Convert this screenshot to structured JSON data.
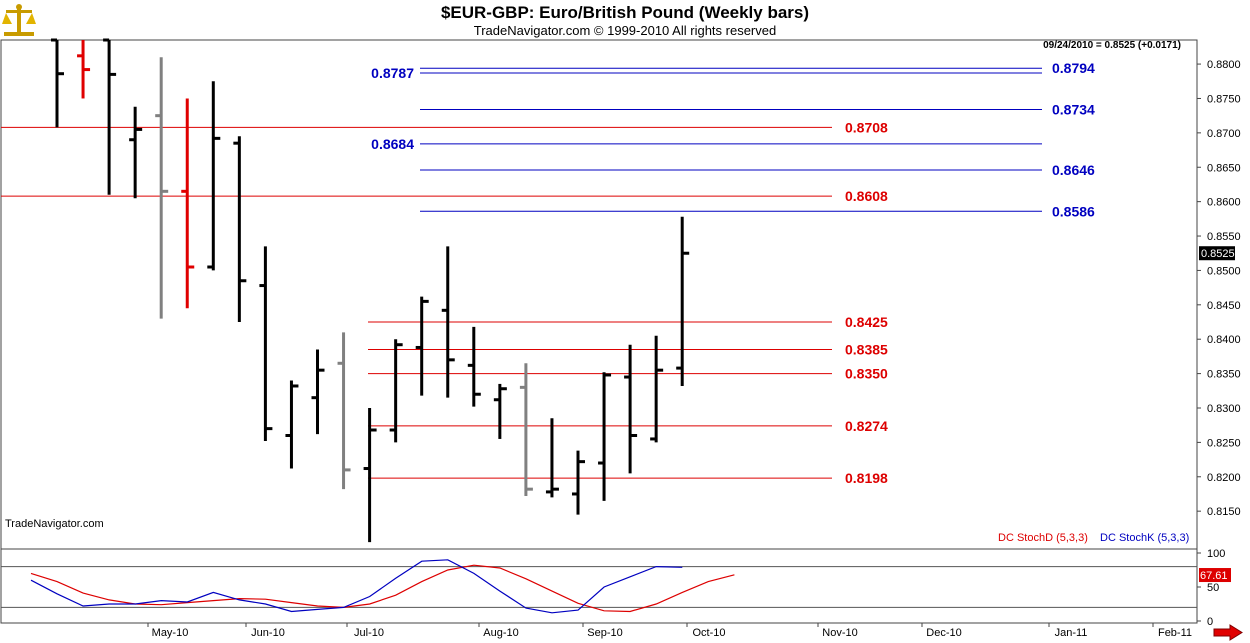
{
  "title": "$EUR-GBP:  Euro/British Pound  (Weekly bars)",
  "subtitle": "TradeNavigator.com © 1999-2010 All rights reserved",
  "watermark": "TradeNavigator.com",
  "last_quote": "09/24/2010 = 0.8525 (+0.0171)",
  "colors": {
    "up_bar": "#000000",
    "down_bar": "#e00000",
    "neutral_bar": "#808080",
    "blue_level": "#0000c0",
    "red_level": "#dd0000",
    "stochD": "#dd0000",
    "stochK": "#0000c0"
  },
  "chart_data": [
    {
      "type": "ohlc",
      "title": "$EUR-GBP:  Euro/British Pound  (Weekly bars)",
      "ylim": [
        0.8095,
        0.8835
      ],
      "y_ticks": [
        "0.8150",
        "0.8200",
        "0.8250",
        "0.8300",
        "0.8350",
        "0.8400",
        "0.8450",
        "0.8500",
        "0.8550",
        "0.8600",
        "0.8650",
        "0.8700",
        "0.8750",
        "0.8800"
      ],
      "x_ticks": [
        "May-10",
        "Jun-10",
        "Jul-10",
        "Aug-10",
        "Sep-10",
        "Oct-10",
        "Nov-10",
        "Dec-10",
        "Jan-11",
        "Feb-11"
      ],
      "last_value_label": "0.8525",
      "bars": [
        {
          "open": 0.8835,
          "high": 0.8835,
          "low": 0.8708,
          "close": 0.8786,
          "color": "black"
        },
        {
          "open": 0.8812,
          "high": 0.8835,
          "low": 0.875,
          "close": 0.8792,
          "color": "red"
        },
        {
          "open": 0.8835,
          "high": 0.8835,
          "low": 0.861,
          "close": 0.8785,
          "color": "black"
        },
        {
          "open": 0.869,
          "high": 0.8738,
          "low": 0.8605,
          "close": 0.8705,
          "color": "black"
        },
        {
          "open": 0.8725,
          "high": 0.881,
          "low": 0.843,
          "close": 0.8615,
          "color": "gray"
        },
        {
          "open": 0.8615,
          "high": 0.875,
          "low": 0.8445,
          "close": 0.8505,
          "color": "red"
        },
        {
          "open": 0.8505,
          "high": 0.8775,
          "low": 0.85,
          "close": 0.8692,
          "color": "black"
        },
        {
          "open": 0.8685,
          "high": 0.8695,
          "low": 0.8425,
          "close": 0.8485,
          "color": "black"
        },
        {
          "open": 0.8478,
          "high": 0.8535,
          "low": 0.8252,
          "close": 0.827,
          "color": "black"
        },
        {
          "open": 0.826,
          "high": 0.834,
          "low": 0.8212,
          "close": 0.8332,
          "color": "black"
        },
        {
          "open": 0.8315,
          "high": 0.8385,
          "low": 0.8262,
          "close": 0.8355,
          "color": "black"
        },
        {
          "open": 0.8365,
          "high": 0.841,
          "low": 0.8182,
          "close": 0.821,
          "color": "gray"
        },
        {
          "open": 0.8212,
          "high": 0.83,
          "low": 0.8105,
          "close": 0.8268,
          "color": "black"
        },
        {
          "open": 0.8268,
          "high": 0.84,
          "low": 0.825,
          "close": 0.8392,
          "color": "black"
        },
        {
          "open": 0.8388,
          "high": 0.8462,
          "low": 0.8318,
          "close": 0.8455,
          "color": "black"
        },
        {
          "open": 0.8442,
          "high": 0.8535,
          "low": 0.8315,
          "close": 0.837,
          "color": "black"
        },
        {
          "open": 0.8362,
          "high": 0.8418,
          "low": 0.8302,
          "close": 0.832,
          "color": "black"
        },
        {
          "open": 0.8312,
          "high": 0.8335,
          "low": 0.8255,
          "close": 0.8328,
          "color": "black"
        },
        {
          "open": 0.833,
          "high": 0.8365,
          "low": 0.8172,
          "close": 0.8182,
          "color": "gray"
        },
        {
          "open": 0.8178,
          "high": 0.8285,
          "low": 0.817,
          "close": 0.8182,
          "color": "black"
        },
        {
          "open": 0.8175,
          "high": 0.8238,
          "low": 0.8145,
          "close": 0.8222,
          "color": "black"
        },
        {
          "open": 0.822,
          "high": 0.8352,
          "low": 0.8165,
          "close": 0.8348,
          "color": "black"
        },
        {
          "open": 0.8345,
          "high": 0.8392,
          "low": 0.8205,
          "close": 0.826,
          "color": "black"
        },
        {
          "open": 0.8255,
          "high": 0.8405,
          "low": 0.825,
          "close": 0.8355,
          "color": "black"
        },
        {
          "open": 0.8358,
          "high": 0.8578,
          "low": 0.8332,
          "close": 0.8525,
          "color": "black"
        }
      ],
      "levels": [
        {
          "value": 0.8794,
          "label": "0.8794",
          "color": "blue"
        },
        {
          "value": 0.8787,
          "label": "0.8787",
          "color": "blue"
        },
        {
          "value": 0.8734,
          "label": "0.8734",
          "color": "blue"
        },
        {
          "value": 0.8708,
          "label": "0.8708",
          "color": "red"
        },
        {
          "value": 0.8684,
          "label": "0.8684",
          "color": "blue"
        },
        {
          "value": 0.8646,
          "label": "0.8646",
          "color": "blue"
        },
        {
          "value": 0.8608,
          "label": "0.8608",
          "color": "red"
        },
        {
          "value": 0.8586,
          "label": "0.8586",
          "color": "blue"
        },
        {
          "value": 0.8425,
          "label": "0.8425",
          "color": "red"
        },
        {
          "value": 0.8385,
          "label": "0.8385",
          "color": "red"
        },
        {
          "value": 0.835,
          "label": "0.8350",
          "color": "red"
        },
        {
          "value": 0.8274,
          "label": "0.8274",
          "color": "red"
        },
        {
          "value": 0.8198,
          "label": "0.8198",
          "color": "red"
        }
      ]
    },
    {
      "type": "line",
      "ylim": [
        0,
        100
      ],
      "y_ticks": [
        "0",
        "50",
        "100"
      ],
      "reference_lines": [
        20,
        80
      ],
      "last_value_label": "67.61",
      "series": [
        {
          "name": "DC StochD (5,3,3)",
          "color": "red",
          "values": [
            70,
            58,
            41,
            31,
            25,
            24,
            27,
            30,
            33,
            32,
            27,
            22,
            20,
            25,
            38,
            58,
            75,
            82,
            78,
            62,
            44,
            26,
            15,
            14,
            25,
            42,
            58,
            68
          ]
        },
        {
          "name": "DC StochK (5,3,3)",
          "color": "blue",
          "values": [
            60,
            40,
            22,
            25,
            25,
            30,
            28,
            42,
            31,
            25,
            14,
            17,
            20,
            36,
            63,
            88,
            90,
            70,
            44,
            19,
            12,
            16,
            50,
            65,
            80,
            79
          ]
        }
      ]
    }
  ]
}
